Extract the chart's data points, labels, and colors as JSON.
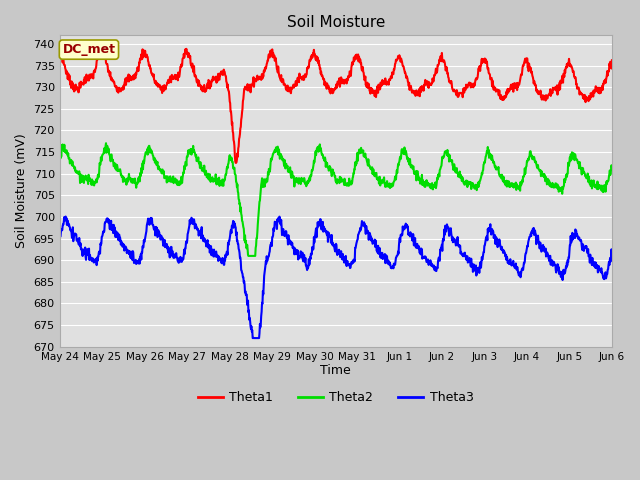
{
  "title": "Soil Moisture",
  "xlabel": "Time",
  "ylabel": "Soil Moisture (mV)",
  "ylim": [
    670,
    742
  ],
  "yticks": [
    670,
    675,
    680,
    685,
    690,
    695,
    700,
    705,
    710,
    715,
    720,
    725,
    730,
    735,
    740
  ],
  "fig_bg_color": "#c8c8c8",
  "plot_bg_color": "#e0e0e0",
  "grid_color": "#ffffff",
  "annotation_text": "DC_met",
  "annotation_bg": "#ffffcc",
  "annotation_border": "#999900",
  "annotation_text_color": "#990000",
  "legend_labels": [
    "Theta1",
    "Theta2",
    "Theta3"
  ],
  "line_colors": [
    "#ff0000",
    "#00dd00",
    "#0000ff"
  ],
  "line_width": 1.5,
  "x_tick_labels": [
    "May 24",
    "May 25",
    "May 26",
    "May 27",
    "May 28",
    "May 29",
    "May 30",
    "May 31",
    "Jun 1",
    "Jun 2",
    "Jun 3",
    "Jun 4",
    "Jun 5",
    "Jun 6"
  ],
  "days": 13
}
